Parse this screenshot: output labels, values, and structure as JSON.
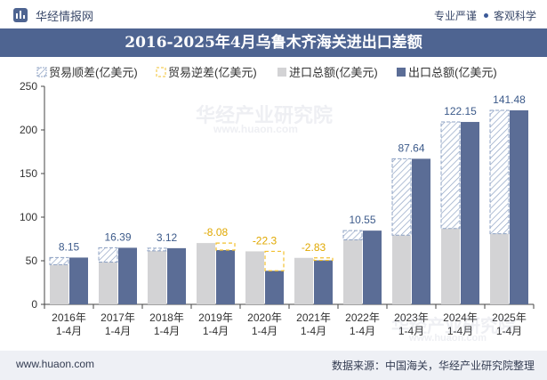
{
  "header": {
    "brand": "华经情报网",
    "badge1": "专业严谨",
    "badge2": "客观科学"
  },
  "watermark": {
    "text": "华经产业研究院",
    "url": "www.huaon.com"
  },
  "footer": {
    "website": "www.huaon.com",
    "source": "数据来源：中国海关，华经产业研究院整理"
  },
  "colors": {
    "export": "#5b6d96",
    "import": "#d3d3d5",
    "surplus_hatch": "#8fa3c4",
    "deficit_dash": "#f2c02f",
    "title_bg": "#4e6491"
  },
  "chart_data": {
    "type": "bar",
    "title": "2016-2025年4月乌鲁木齐海关进出口差额",
    "ylim": [
      0,
      250
    ],
    "yticks": [
      0,
      50,
      100,
      150,
      200,
      250
    ],
    "grid": false,
    "legend_position": "top",
    "categories": [
      "2016年\n1-4月",
      "2017年\n1-4月",
      "2018年\n1-4月",
      "2019年\n1-4月",
      "2020年\n1-4月",
      "2021年\n1-4月",
      "2022年\n1-4月",
      "2023年\n1-4月",
      "2024年\n1-4月",
      "2025年\n1-4月"
    ],
    "series": [
      {
        "name": "贸易顺差(亿美元)",
        "values": [
          8.15,
          16.39,
          3.12,
          null,
          null,
          null,
          10.55,
          87.64,
          122.15,
          141.48
        ]
      },
      {
        "name": "贸易逆差(亿美元)",
        "values": [
          null,
          null,
          null,
          -8.08,
          -22.3,
          -2.83,
          null,
          null,
          null,
          null
        ]
      },
      {
        "name": "进口总额(亿美元)",
        "values": [
          45.5,
          48.5,
          61.3,
          70.3,
          60.8,
          53.3,
          74.0,
          79.3,
          87.0,
          81.0
        ]
      },
      {
        "name": "出口总额(亿美元)",
        "values": [
          53.65,
          64.89,
          64.42,
          62.22,
          38.5,
          50.47,
          84.55,
          166.94,
          209.15,
          222.48
        ]
      }
    ],
    "data_labels": [
      "8.15",
      "16.39",
      "3.12",
      "-8.08",
      "-22.3",
      "-2.83",
      "10.55",
      "87.64",
      "122.15",
      "141.48"
    ]
  }
}
